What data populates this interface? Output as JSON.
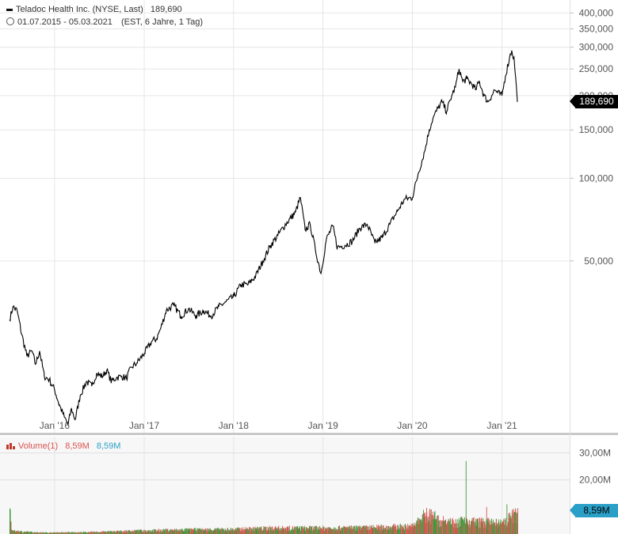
{
  "header": {
    "instrument": "Teladoc Health Inc. (NYSE, Last)",
    "last_value": "189,690",
    "date_range": "01.07.2015 - 05.03.2021",
    "meta": "(EST, 6 Jahre, 1 Tag)"
  },
  "volume_legend": {
    "label": "Volume(1)",
    "value_red": "8,59M",
    "value_blue": "8,59M"
  },
  "price_tag": "189,690",
  "volume_tag": "8,59M",
  "colors": {
    "line": "#000000",
    "volume_up": "#3a9a3a",
    "volume_down": "#d9534f",
    "volume_tag": "#2aa0c8",
    "grid": "#e6e6e6"
  },
  "chart_data": [
    {
      "type": "line",
      "title": "Teladoc Health Inc. (NYSE, Last)",
      "scale": "log",
      "ylim": [
        12000,
        420000
      ],
      "xlim": [
        "2015-07-01",
        "2021-03-05"
      ],
      "y_ticks": [
        {
          "value": 50000,
          "label": "50,000"
        },
        {
          "value": 100000,
          "label": "100,000"
        },
        {
          "value": 150000,
          "label": "150,000"
        },
        {
          "value": 200000,
          "label": "200,000"
        },
        {
          "value": 250000,
          "label": "250,000"
        },
        {
          "value": 300000,
          "label": "300,000"
        },
        {
          "value": 350000,
          "label": "350,000"
        },
        {
          "value": 400000,
          "label": "400,000"
        }
      ],
      "x_ticks": [
        {
          "date": "2016-01-01",
          "label": "Jan '16"
        },
        {
          "date": "2017-01-01",
          "label": "Jan '17"
        },
        {
          "date": "2018-01-01",
          "label": "Jan '18"
        },
        {
          "date": "2019-01-01",
          "label": "Jan '19"
        },
        {
          "date": "2020-01-01",
          "label": "Jan '20"
        },
        {
          "date": "2021-01-01",
          "label": "Jan '21"
        }
      ],
      "grid": true,
      "points": [
        [
          "2015-07-01",
          30500
        ],
        [
          "2015-07-15",
          34000
        ],
        [
          "2015-08-01",
          33000
        ],
        [
          "2015-08-20",
          27000
        ],
        [
          "2015-09-10",
          22500
        ],
        [
          "2015-10-01",
          23500
        ],
        [
          "2015-10-15",
          21000
        ],
        [
          "2015-11-01",
          23500
        ],
        [
          "2015-11-20",
          19000
        ],
        [
          "2015-12-10",
          18500
        ],
        [
          "2016-01-01",
          17000
        ],
        [
          "2016-01-20",
          15000
        ],
        [
          "2016-02-10",
          13500
        ],
        [
          "2016-02-25",
          12700
        ],
        [
          "2016-03-10",
          14500
        ],
        [
          "2016-03-25",
          13200
        ],
        [
          "2016-04-15",
          16200
        ],
        [
          "2016-05-10",
          18200
        ],
        [
          "2016-06-01",
          17500
        ],
        [
          "2016-06-20",
          19400
        ],
        [
          "2016-07-15",
          19000
        ],
        [
          "2016-08-01",
          20000
        ],
        [
          "2016-08-20",
          18200
        ],
        [
          "2016-09-10",
          18800
        ],
        [
          "2016-10-01",
          19000
        ],
        [
          "2016-10-20",
          18700
        ],
        [
          "2016-11-10",
          20500
        ],
        [
          "2016-12-01",
          21200
        ],
        [
          "2017-01-01",
          23000
        ],
        [
          "2017-02-01",
          25500
        ],
        [
          "2017-02-20",
          26000
        ],
        [
          "2017-03-10",
          28500
        ],
        [
          "2017-04-01",
          33000
        ],
        [
          "2017-05-01",
          34500
        ],
        [
          "2017-06-01",
          31500
        ],
        [
          "2017-07-01",
          33500
        ],
        [
          "2017-08-01",
          31500
        ],
        [
          "2017-09-01",
          33000
        ],
        [
          "2017-10-01",
          31500
        ],
        [
          "2017-11-01",
          34000
        ],
        [
          "2017-12-01",
          35500
        ],
        [
          "2018-01-01",
          37000
        ],
        [
          "2018-02-01",
          41000
        ],
        [
          "2018-03-01",
          41000
        ],
        [
          "2018-04-01",
          44000
        ],
        [
          "2018-05-01",
          50000
        ],
        [
          "2018-06-01",
          57000
        ],
        [
          "2018-07-01",
          62000
        ],
        [
          "2018-08-01",
          68000
        ],
        [
          "2018-09-10",
          75000
        ],
        [
          "2018-10-01",
          85000
        ],
        [
          "2018-10-20",
          65000
        ],
        [
          "2018-11-10",
          68000
        ],
        [
          "2018-12-01",
          55000
        ],
        [
          "2018-12-24",
          45000
        ],
        [
          "2019-01-15",
          60000
        ],
        [
          "2019-02-10",
          67000
        ],
        [
          "2019-03-01",
          56000
        ],
        [
          "2019-04-01",
          57000
        ],
        [
          "2019-05-01",
          59000
        ],
        [
          "2019-06-01",
          66000
        ],
        [
          "2019-07-01",
          68000
        ],
        [
          "2019-08-01",
          58000
        ],
        [
          "2019-09-01",
          61000
        ],
        [
          "2019-10-01",
          68000
        ],
        [
          "2019-11-01",
          76000
        ],
        [
          "2019-12-01",
          84000
        ],
        [
          "2020-01-01",
          85000
        ],
        [
          "2020-01-25",
          104000
        ],
        [
          "2020-02-20",
          125000
        ],
        [
          "2020-03-10",
          150000
        ],
        [
          "2020-03-25",
          165000
        ],
        [
          "2020-04-15",
          180000
        ],
        [
          "2020-05-01",
          190000
        ],
        [
          "2020-05-20",
          175000
        ],
        [
          "2020-06-10",
          200000
        ],
        [
          "2020-06-25",
          215000
        ],
        [
          "2020-07-10",
          250000
        ],
        [
          "2020-07-25",
          225000
        ],
        [
          "2020-08-10",
          230000
        ],
        [
          "2020-09-01",
          220000
        ],
        [
          "2020-09-15",
          210000
        ],
        [
          "2020-10-01",
          225000
        ],
        [
          "2020-10-20",
          200000
        ],
        [
          "2020-11-05",
          190000
        ],
        [
          "2020-11-20",
          200000
        ],
        [
          "2020-12-01",
          210000
        ],
        [
          "2020-12-15",
          205000
        ],
        [
          "2021-01-01",
          200000
        ],
        [
          "2021-01-15",
          235000
        ],
        [
          "2021-02-01",
          275000
        ],
        [
          "2021-02-10",
          292000
        ],
        [
          "2021-02-20",
          270000
        ],
        [
          "2021-03-01",
          215000
        ],
        [
          "2021-03-05",
          189690
        ]
      ]
    },
    {
      "type": "bar",
      "title": "Volume(1)",
      "ylim": [
        0,
        36000000
      ],
      "y_ticks": [
        {
          "value": 20000000,
          "label": "20,00M"
        },
        {
          "value": 30000000,
          "label": "30,00M"
        }
      ],
      "last_value": 8590000,
      "profile": [
        [
          "2015-07-01",
          9500000
        ],
        [
          "2015-07-08",
          1200000
        ],
        [
          "2015-09-01",
          800000
        ],
        [
          "2015-12-01",
          500000
        ],
        [
          "2016-06-01",
          700000
        ],
        [
          "2017-01-01",
          1300000
        ],
        [
          "2017-06-01",
          1600000
        ],
        [
          "2018-01-01",
          1800000
        ],
        [
          "2018-06-01",
          2300000
        ],
        [
          "2019-01-01",
          2300000
        ],
        [
          "2019-06-01",
          2400000
        ],
        [
          "2020-01-01",
          3000000
        ],
        [
          "2020-03-01",
          8000000
        ],
        [
          "2020-04-15",
          5500000
        ],
        [
          "2020-06-01",
          4500000
        ],
        [
          "2020-08-01",
          5000000
        ],
        [
          "2020-11-01",
          4500000
        ],
        [
          "2021-01-01",
          4000000
        ],
        [
          "2021-03-05",
          8590000
        ]
      ],
      "spikes": [
        [
          "2015-07-01",
          9500000
        ],
        [
          "2017-10-01",
          3500000
        ],
        [
          "2019-04-20",
          4000000
        ],
        [
          "2020-03-01",
          17000000
        ],
        [
          "2020-04-01",
          8500000
        ],
        [
          "2020-08-06",
          27000000
        ],
        [
          "2020-10-29",
          10000000
        ],
        [
          "2021-01-20",
          11000000
        ],
        [
          "2021-02-25",
          9000000
        ]
      ]
    }
  ]
}
